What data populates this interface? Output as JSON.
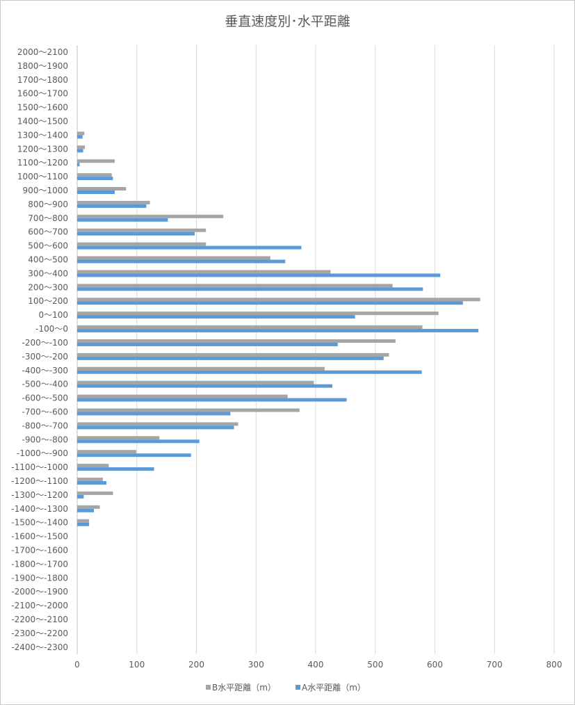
{
  "chart_data": {
    "type": "bar",
    "orientation": "horizontal",
    "title": "垂直速度別･水平距離",
    "xlim": [
      0,
      800
    ],
    "xticks": [
      0,
      100,
      200,
      300,
      400,
      500,
      600,
      700,
      800
    ],
    "grid": true,
    "legend": "bottom",
    "categories": [
      "2000～2100",
      "1800～1900",
      "1700～1800",
      "1600～1700",
      "1500～1600",
      "1400～1500",
      "1300～1400",
      "1200～1300",
      "1100～1200",
      "1000～1100",
      "900～1000",
      "800～900",
      "700～800",
      "600～700",
      "500～600",
      "400～500",
      "300～400",
      "200～300",
      "100～200",
      "0～100",
      "-100～0",
      "-200～-100",
      "-300～-200",
      "-400～-300",
      "-500～-400",
      "-600～-500",
      "-700～-600",
      "-800～-700",
      "-900～-800",
      "-1000～-900",
      "-1100～-1000",
      "-1200～-1100",
      "-1300～-1200",
      "-1400～-1300",
      "-1500～-1400",
      "-1600～-1500",
      "-1700～-1600",
      "-1800～-1700",
      "-1900～-1800",
      "-2000～-1900",
      "-2100～-2000",
      "-2200～-2100",
      "-2300～-2200",
      "-2400～-2300"
    ],
    "series": [
      {
        "name": "B水平距離（m）",
        "color": "#a5a5a5",
        "values": [
          0,
          0,
          0,
          0,
          0,
          0,
          12,
          13,
          63,
          58,
          82,
          122,
          245,
          216,
          216,
          324,
          425,
          529,
          676,
          606,
          579,
          534,
          523,
          415,
          397,
          353,
          373,
          270,
          138,
          99,
          53,
          43,
          60,
          38,
          20,
          0,
          0,
          0,
          0,
          0,
          0,
          0,
          0,
          0
        ]
      },
      {
        "name": "A水平距離（m）",
        "color": "#5b9bd5",
        "values": [
          0,
          0,
          0,
          0,
          0,
          0,
          9,
          10,
          4,
          60,
          63,
          116,
          152,
          197,
          376,
          349,
          609,
          580,
          647,
          466,
          673,
          437,
          514,
          578,
          428,
          452,
          257,
          263,
          205,
          191,
          129,
          49,
          11,
          28,
          20,
          0,
          0,
          0,
          0,
          0,
          0,
          0,
          0,
          0
        ]
      }
    ]
  }
}
